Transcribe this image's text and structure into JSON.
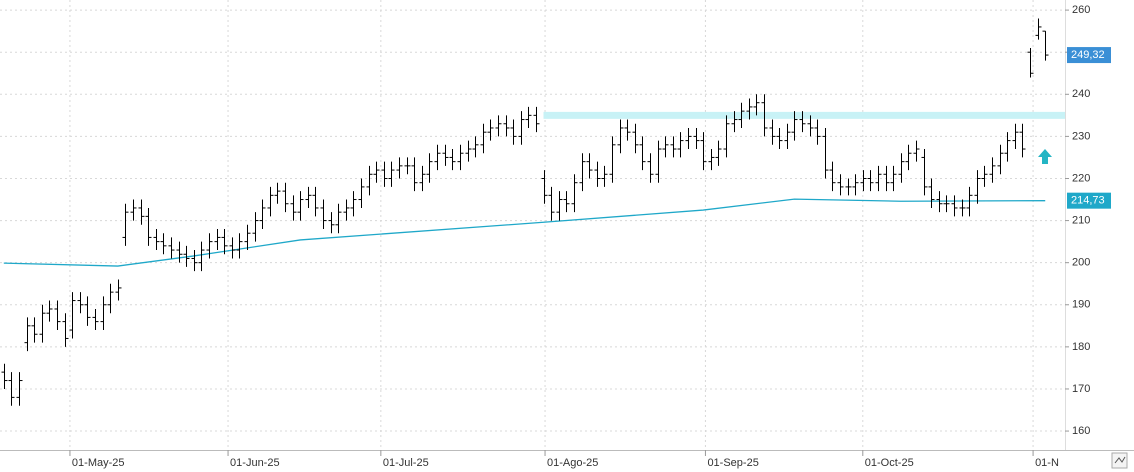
{
  "chart_data": {
    "type": "ohlc",
    "color": "#000000",
    "xlim": [
      -0.5,
      139.6
    ],
    "ylim": [
      155.5,
      262.4
    ],
    "yticks": [
      160,
      170,
      180,
      190,
      200,
      210,
      220,
      230,
      240,
      250,
      260
    ],
    "xticks": [
      {
        "value": 8.7,
        "label": "01-May-25"
      },
      {
        "value": 29.5,
        "label": "01-Jun-25"
      },
      {
        "value": 49.6,
        "label": "01-Jul-25"
      },
      {
        "value": 71.2,
        "label": "01-Ago-25"
      },
      {
        "value": 92.3,
        "label": "01-Sep-25"
      },
      {
        "value": 113,
        "label": "01-Oct-25"
      },
      {
        "value": 135.4,
        "label": "01-N"
      }
    ],
    "grid": true,
    "open": [
      174,
      172,
      168,
      181,
      185,
      183,
      188,
      189,
      186,
      184,
      191,
      190,
      187,
      186,
      190,
      193,
      206,
      212,
      213,
      211,
      206,
      205,
      204,
      203,
      202,
      201,
      200,
      203,
      205,
      206,
      204,
      203,
      205,
      207,
      210,
      213,
      216,
      217,
      214,
      212,
      215,
      216,
      213,
      210,
      209,
      212,
      213,
      215,
      218,
      221,
      222,
      220,
      222,
      223,
      223,
      219,
      221,
      224,
      226,
      225,
      224,
      226,
      227,
      228,
      231,
      232,
      233,
      232,
      230,
      234,
      235,
      220,
      216,
      212,
      215,
      214,
      219,
      224,
      222,
      220,
      221,
      228,
      232,
      231,
      228,
      224,
      221,
      227,
      228,
      227,
      229,
      230,
      229,
      224,
      225,
      227,
      233,
      234,
      236,
      237,
      238,
      232,
      230,
      229,
      231,
      234,
      233,
      232,
      230,
      222,
      219,
      218,
      218,
      219,
      220,
      219,
      221,
      219,
      221,
      224,
      226,
      225,
      218,
      215,
      214,
      214,
      213,
      213,
      216,
      220,
      221,
      223,
      226,
      229,
      231,
      250,
      254,
      255
    ],
    "high": [
      176,
      174,
      174,
      187,
      187,
      190,
      191,
      191,
      188,
      193,
      193,
      192,
      189,
      192,
      195,
      196,
      214,
      215,
      215,
      213,
      208,
      207,
      206,
      205,
      204,
      203,
      205,
      207,
      208,
      208,
      206,
      207,
      209,
      212,
      215,
      218,
      219,
      219,
      216,
      217,
      218,
      218,
      215,
      212,
      214,
      215,
      217,
      220,
      223,
      224,
      224,
      224,
      225,
      225,
      225,
      223,
      226,
      228,
      228,
      227,
      228,
      229,
      230,
      233,
      234,
      235,
      235,
      234,
      236,
      237,
      237,
      222,
      218,
      217,
      217,
      221,
      226,
      226,
      224,
      223,
      230,
      234,
      234,
      233,
      230,
      226,
      229,
      230,
      230,
      231,
      232,
      232,
      231,
      227,
      229,
      235,
      236,
      238,
      239,
      240,
      240,
      234,
      232,
      233,
      236,
      236,
      235,
      234,
      232,
      224,
      221,
      220,
      221,
      222,
      222,
      223,
      223,
      223,
      226,
      228,
      229,
      227,
      220,
      217,
      216,
      216,
      215,
      218,
      222,
      223,
      225,
      228,
      231,
      233,
      233,
      251,
      258,
      255
    ],
    "low": [
      170,
      166,
      166,
      179,
      181,
      181,
      186,
      184,
      180,
      182,
      188,
      185,
      184,
      184,
      188,
      191,
      204,
      210,
      209,
      204,
      203,
      202,
      201,
      200,
      199,
      198,
      198,
      201,
      203,
      202,
      201,
      201,
      203,
      205,
      208,
      211,
      214,
      212,
      210,
      210,
      213,
      211,
      208,
      207,
      207,
      210,
      211,
      213,
      216,
      219,
      218,
      218,
      220,
      221,
      217,
      217,
      219,
      222,
      223,
      222,
      222,
      224,
      225,
      226,
      229,
      230,
      230,
      228,
      228,
      232,
      231,
      214,
      210,
      210,
      212,
      212,
      217,
      220,
      218,
      218,
      219,
      226,
      229,
      226,
      222,
      219,
      219,
      225,
      225,
      225,
      227,
      227,
      222,
      222,
      223,
      225,
      231,
      232,
      234,
      235,
      230,
      228,
      227,
      227,
      229,
      231,
      230,
      228,
      220,
      217,
      216,
      216,
      216,
      217,
      217,
      217,
      217,
      217,
      219,
      222,
      224,
      216,
      213,
      212,
      212,
      211,
      211,
      211,
      214,
      218,
      219,
      221,
      224,
      227,
      225,
      244,
      253,
      248
    ],
    "close": [
      172,
      168,
      172,
      185,
      183,
      188,
      189,
      186,
      182,
      191,
      190,
      187,
      186,
      190,
      193,
      194,
      212,
      213,
      211,
      206,
      205,
      204,
      203,
      202,
      201,
      200,
      203,
      205,
      206,
      204,
      203,
      205,
      207,
      210,
      213,
      216,
      217,
      214,
      212,
      215,
      216,
      213,
      210,
      209,
      212,
      213,
      215,
      218,
      221,
      222,
      220,
      222,
      223,
      223,
      219,
      221,
      224,
      226,
      225,
      224,
      226,
      227,
      228,
      231,
      232,
      233,
      232,
      230,
      234,
      235,
      233,
      216,
      212,
      215,
      214,
      219,
      224,
      222,
      220,
      221,
      228,
      232,
      231,
      228,
      224,
      221,
      227,
      228,
      227,
      229,
      230,
      229,
      224,
      225,
      227,
      233,
      234,
      236,
      237,
      238,
      232,
      230,
      229,
      231,
      234,
      233,
      232,
      230,
      222,
      219,
      218,
      218,
      219,
      220,
      219,
      221,
      219,
      221,
      224,
      226,
      227,
      218,
      215,
      214,
      214,
      213,
      213,
      216,
      220,
      221,
      223,
      226,
      229,
      231,
      227,
      245,
      256,
      249.32
    ],
    "moving_average": {
      "color": "#1fa8c9",
      "x": [
        0,
        15,
        25,
        39,
        71,
        92,
        104,
        118,
        137
      ],
      "values": [
        199.9,
        199.2,
        201.6,
        205.4,
        209.6,
        212.5,
        215.1,
        214.6,
        214.73
      ]
    },
    "band": {
      "value": 235,
      "color": "#c8f2f6"
    },
    "last_price": {
      "value": 249.32,
      "label": "249,32"
    },
    "ma_last": {
      "value": 214.73,
      "label": "214,73"
    }
  }
}
